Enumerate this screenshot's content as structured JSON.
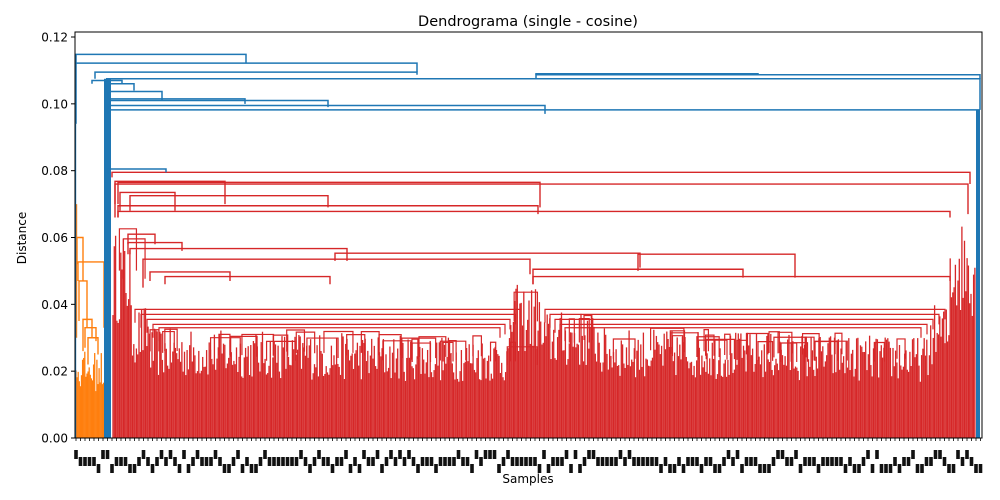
{
  "chart_data": {
    "type": "dendrogram",
    "title": "Dendrograma (single - cosine)",
    "xlabel": "Samples",
    "ylabel": "Distance",
    "ylim": [
      0,
      0.1215
    ],
    "yticks": [
      0.0,
      0.02,
      0.04,
      0.06,
      0.08,
      0.1,
      0.12
    ],
    "ytick_labels": [
      "0.00",
      "0.02",
      "0.04",
      "0.06",
      "0.08",
      "0.10",
      "0.12"
    ],
    "grid": false,
    "x_tick_labels_note": "dense overlapping sample tick labels (illegible)",
    "colors": {
      "cluster_orange": "#ff7f0e",
      "cluster_red": "#d62728",
      "above_threshold": "#1f77b4"
    },
    "major_merges": [
      {
        "height": 0.1148,
        "color": "#1f77b4"
      },
      {
        "height": 0.1122,
        "color": "#1f77b4"
      },
      {
        "height": 0.1087,
        "color": "#1f77b4"
      },
      {
        "height": 0.1075,
        "color": "#1f77b4"
      },
      {
        "height": 0.0982,
        "color": "#1f77b4"
      },
      {
        "height": 0.0795,
        "color": "#d62728"
      },
      {
        "height": 0.0765,
        "color": "#d62728"
      },
      {
        "height": 0.0678,
        "color": "#d62728"
      },
      {
        "height": 0.0527,
        "color": "#ff7f0e"
      }
    ]
  }
}
